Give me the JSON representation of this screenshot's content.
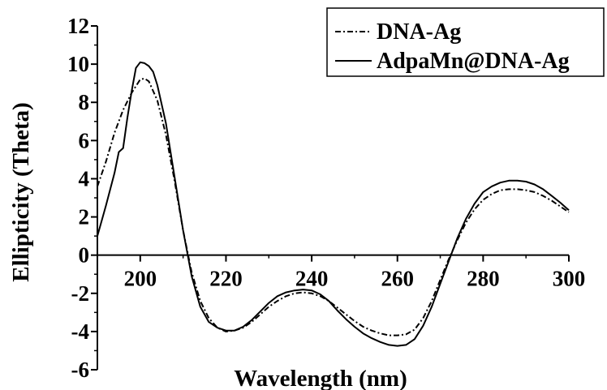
{
  "chart_data": {
    "type": "line",
    "xlabel": "Wavelength (nm)",
    "ylabel": "Ellipticity (Theta)",
    "xlim": [
      190,
      300
    ],
    "ylim": [
      -6,
      12
    ],
    "xticks": [
      200,
      220,
      240,
      260,
      280,
      300
    ],
    "yticks": [
      -6,
      -4,
      -2,
      0,
      2,
      4,
      6,
      8,
      10,
      12
    ],
    "grid": false,
    "legend_position": "top-right",
    "series": [
      {
        "name": "DNA-Ag",
        "style": "dash-dot",
        "color": "#000000",
        "x": [
          190,
          192,
          194,
          196,
          198,
          200,
          201,
          202,
          204,
          206,
          208,
          210,
          212,
          214,
          216,
          218,
          220,
          222,
          224,
          226,
          228,
          230,
          232,
          234,
          236,
          238,
          240,
          242,
          244,
          246,
          248,
          250,
          252,
          254,
          256,
          258,
          260,
          262,
          264,
          266,
          268,
          270,
          272,
          274,
          276,
          278,
          280,
          282,
          284,
          286,
          288,
          290,
          292,
          294,
          296,
          298,
          300
        ],
        "values": [
          3.6,
          4.9,
          6.4,
          7.6,
          8.5,
          9.2,
          9.25,
          9.1,
          8.1,
          6.3,
          3.9,
          1.3,
          -0.9,
          -2.4,
          -3.3,
          -3.8,
          -4.0,
          -3.95,
          -3.8,
          -3.5,
          -3.1,
          -2.7,
          -2.4,
          -2.15,
          -2.0,
          -1.95,
          -2.0,
          -2.15,
          -2.4,
          -2.75,
          -3.1,
          -3.45,
          -3.75,
          -3.95,
          -4.1,
          -4.2,
          -4.2,
          -4.15,
          -3.9,
          -3.3,
          -2.4,
          -1.3,
          -0.2,
          0.8,
          1.7,
          2.4,
          2.9,
          3.2,
          3.4,
          3.45,
          3.45,
          3.4,
          3.3,
          3.1,
          2.85,
          2.55,
          2.25
        ]
      },
      {
        "name": "AdpaMn@DNA-Ag",
        "style": "solid",
        "color": "#000000",
        "x": [
          190,
          192,
          194,
          195,
          196,
          197,
          198,
          199,
          200,
          201,
          202,
          203,
          204,
          206,
          208,
          210,
          212,
          214,
          216,
          218,
          220,
          222,
          224,
          226,
          228,
          230,
          232,
          234,
          236,
          238,
          240,
          242,
          244,
          246,
          248,
          250,
          252,
          254,
          256,
          258,
          260,
          262,
          264,
          266,
          268,
          270,
          272,
          274,
          276,
          278,
          280,
          282,
          284,
          286,
          288,
          290,
          292,
          294,
          296,
          298,
          300
        ],
        "values": [
          1.0,
          2.6,
          4.3,
          5.4,
          5.6,
          7.2,
          8.6,
          9.8,
          10.1,
          10.05,
          9.9,
          9.6,
          8.9,
          6.9,
          4.1,
          1.3,
          -1.1,
          -2.7,
          -3.5,
          -3.8,
          -3.95,
          -3.95,
          -3.75,
          -3.4,
          -2.95,
          -2.5,
          -2.15,
          -1.95,
          -1.85,
          -1.8,
          -1.85,
          -2.05,
          -2.4,
          -2.9,
          -3.35,
          -3.75,
          -4.1,
          -4.35,
          -4.55,
          -4.7,
          -4.75,
          -4.7,
          -4.4,
          -3.7,
          -2.7,
          -1.5,
          -0.3,
          0.9,
          1.9,
          2.7,
          3.3,
          3.6,
          3.8,
          3.9,
          3.9,
          3.85,
          3.7,
          3.45,
          3.1,
          2.75,
          2.35
        ]
      }
    ]
  }
}
